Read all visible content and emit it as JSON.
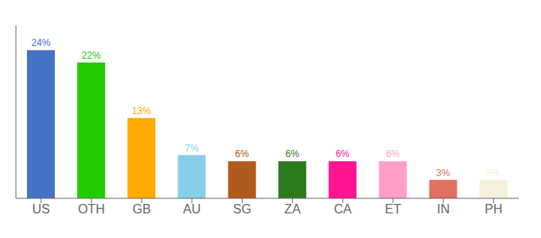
{
  "chart_data": {
    "type": "bar",
    "categories": [
      "US",
      "OTH",
      "GB",
      "AU",
      "SG",
      "ZA",
      "CA",
      "ET",
      "IN",
      "PH"
    ],
    "values": [
      24,
      22,
      13,
      7,
      6,
      6,
      6,
      6,
      3,
      3
    ],
    "value_labels": [
      "24%",
      "22%",
      "13%",
      "7%",
      "6%",
      "6%",
      "6%",
      "6%",
      "3%",
      "3%"
    ],
    "colors": [
      "#4472c4",
      "#22cc00",
      "#ffaa00",
      "#87ceeb",
      "#b05a1e",
      "#2d7a1e",
      "#ff1493",
      "#ff9ec8",
      "#e07060",
      "#f5f0dc"
    ],
    "ylim": [
      0,
      28
    ],
    "data_labels": true,
    "tick_labels": "x",
    "grid": false
  }
}
